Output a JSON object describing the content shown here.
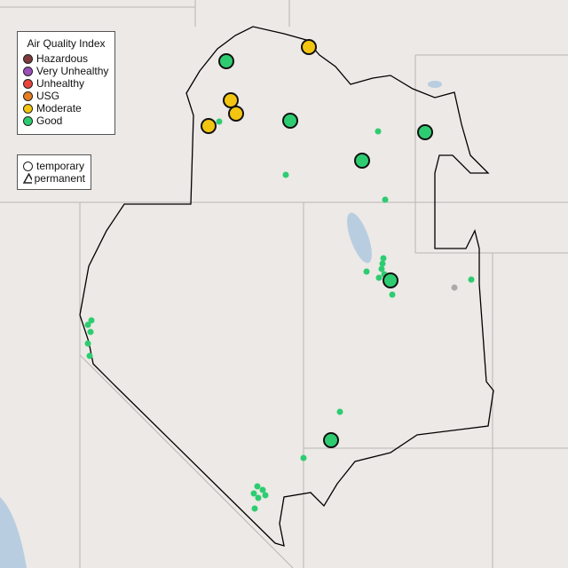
{
  "legend": {
    "title": "Air Quality Index",
    "categories": [
      {
        "label": "Hazardous",
        "color": "#7e3b3b"
      },
      {
        "label": "Very Unhealthy",
        "color": "#9b4fb8"
      },
      {
        "label": "Unhealthy",
        "color": "#e8453c"
      },
      {
        "label": "USG",
        "color": "#e57e22"
      },
      {
        "label": "Moderate",
        "color": "#f2c511"
      },
      {
        "label": "Good",
        "color": "#2ecc71"
      }
    ],
    "shapes": [
      {
        "label": "temporary",
        "icon": "circle-icon"
      },
      {
        "label": "permanent",
        "icon": "triangle-icon"
      }
    ]
  },
  "monitors_large": [
    {
      "category": "Moderate",
      "pos": [
        348,
        53
      ]
    },
    {
      "category": "Good",
      "pos": [
        255,
        69
      ]
    },
    {
      "category": "Moderate",
      "pos": [
        260,
        113
      ]
    },
    {
      "category": "Moderate",
      "pos": [
        266,
        128
      ]
    },
    {
      "category": "Moderate",
      "pos": [
        235,
        142
      ]
    },
    {
      "category": "Good",
      "pos": [
        327,
        136
      ]
    },
    {
      "category": "Good",
      "pos": [
        479,
        149
      ]
    },
    {
      "category": "Good",
      "pos": [
        408,
        181
      ]
    },
    {
      "category": "Good",
      "pos": [
        440,
        316
      ]
    },
    {
      "category": "Good",
      "pos": [
        373,
        496
      ]
    }
  ],
  "monitors_small": [
    {
      "category": "Good",
      "pos": [
        247,
        137
      ]
    },
    {
      "category": "Good",
      "pos": [
        426,
        148
      ]
    },
    {
      "category": "Good",
      "pos": [
        322,
        197
      ]
    },
    {
      "category": "Good",
      "pos": [
        434,
        225
      ]
    },
    {
      "category": "Good",
      "pos": [
        432,
        291
      ]
    },
    {
      "category": "Good",
      "pos": [
        431,
        297
      ]
    },
    {
      "category": "Good",
      "pos": [
        430,
        303
      ]
    },
    {
      "category": "Good",
      "pos": [
        433,
        309
      ]
    },
    {
      "category": "Good",
      "pos": [
        413,
        306
      ]
    },
    {
      "category": "Good",
      "pos": [
        427,
        313
      ]
    },
    {
      "category": "Good",
      "pos": [
        442,
        332
      ]
    },
    {
      "category": "Good",
      "pos": [
        531,
        315
      ]
    },
    {
      "category": "none",
      "pos": [
        512,
        324
      ]
    },
    {
      "category": "Good",
      "pos": [
        103,
        361
      ]
    },
    {
      "category": "Good",
      "pos": [
        99,
        366
      ]
    },
    {
      "category": "Good",
      "pos": [
        102,
        374
      ]
    },
    {
      "category": "Good",
      "pos": [
        99,
        387
      ]
    },
    {
      "category": "Good",
      "pos": [
        101,
        401
      ]
    },
    {
      "category": "Good",
      "pos": [
        383,
        464
      ]
    },
    {
      "category": "Good",
      "pos": [
        342,
        516
      ]
    },
    {
      "category": "Good",
      "pos": [
        290,
        548
      ]
    },
    {
      "category": "Good",
      "pos": [
        296,
        552
      ]
    },
    {
      "category": "Good",
      "pos": [
        286,
        556
      ]
    },
    {
      "category": "Good",
      "pos": [
        299,
        558
      ]
    },
    {
      "category": "Good",
      "pos": [
        291,
        561
      ]
    },
    {
      "category": "Good",
      "pos": [
        287,
        573
      ]
    }
  ]
}
